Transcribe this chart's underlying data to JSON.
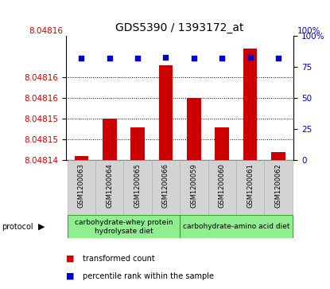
{
  "title": "GDS5390 / 1393172_at",
  "samples": [
    "GSM1200063",
    "GSM1200064",
    "GSM1200065",
    "GSM1200066",
    "GSM1200059",
    "GSM1200060",
    "GSM1200061",
    "GSM1200062"
  ],
  "red_values": [
    8.048141,
    8.04815,
    8.048148,
    8.048163,
    8.048155,
    8.048148,
    8.048167,
    8.048142
  ],
  "blue_values": [
    82,
    82,
    82,
    83,
    82,
    82,
    83,
    82
  ],
  "ylim_left": [
    8.04814,
    8.04817
  ],
  "ylim_right": [
    0,
    100
  ],
  "ytick_vals_left": [
    8.04814,
    8.048145,
    8.04815,
    8.048155,
    8.04816
  ],
  "ytick_labels_left": [
    "8.04814",
    "8.04815",
    "8.04815",
    "8.04816",
    "8.04816"
  ],
  "yticks_right": [
    0,
    25,
    50,
    75,
    100
  ],
  "grid_vals": [
    8.048145,
    8.04815,
    8.048155,
    8.04816
  ],
  "bar_color": "#cc0000",
  "marker_color": "#0000cc",
  "protocol_groups": [
    {
      "label": "carbohydrate-whey protein\nhydrolysate diet",
      "start": 0,
      "end": 4
    },
    {
      "label": "carbohydrate-amino acid diet",
      "start": 4,
      "end": 8
    }
  ],
  "protocol_bg": "#90ee90",
  "sample_bg": "#d3d3d3",
  "title_fontsize": 10,
  "tick_fontsize": 7.5,
  "sample_fontsize": 6,
  "proto_fontsize": 6.5,
  "legend_fontsize": 7
}
